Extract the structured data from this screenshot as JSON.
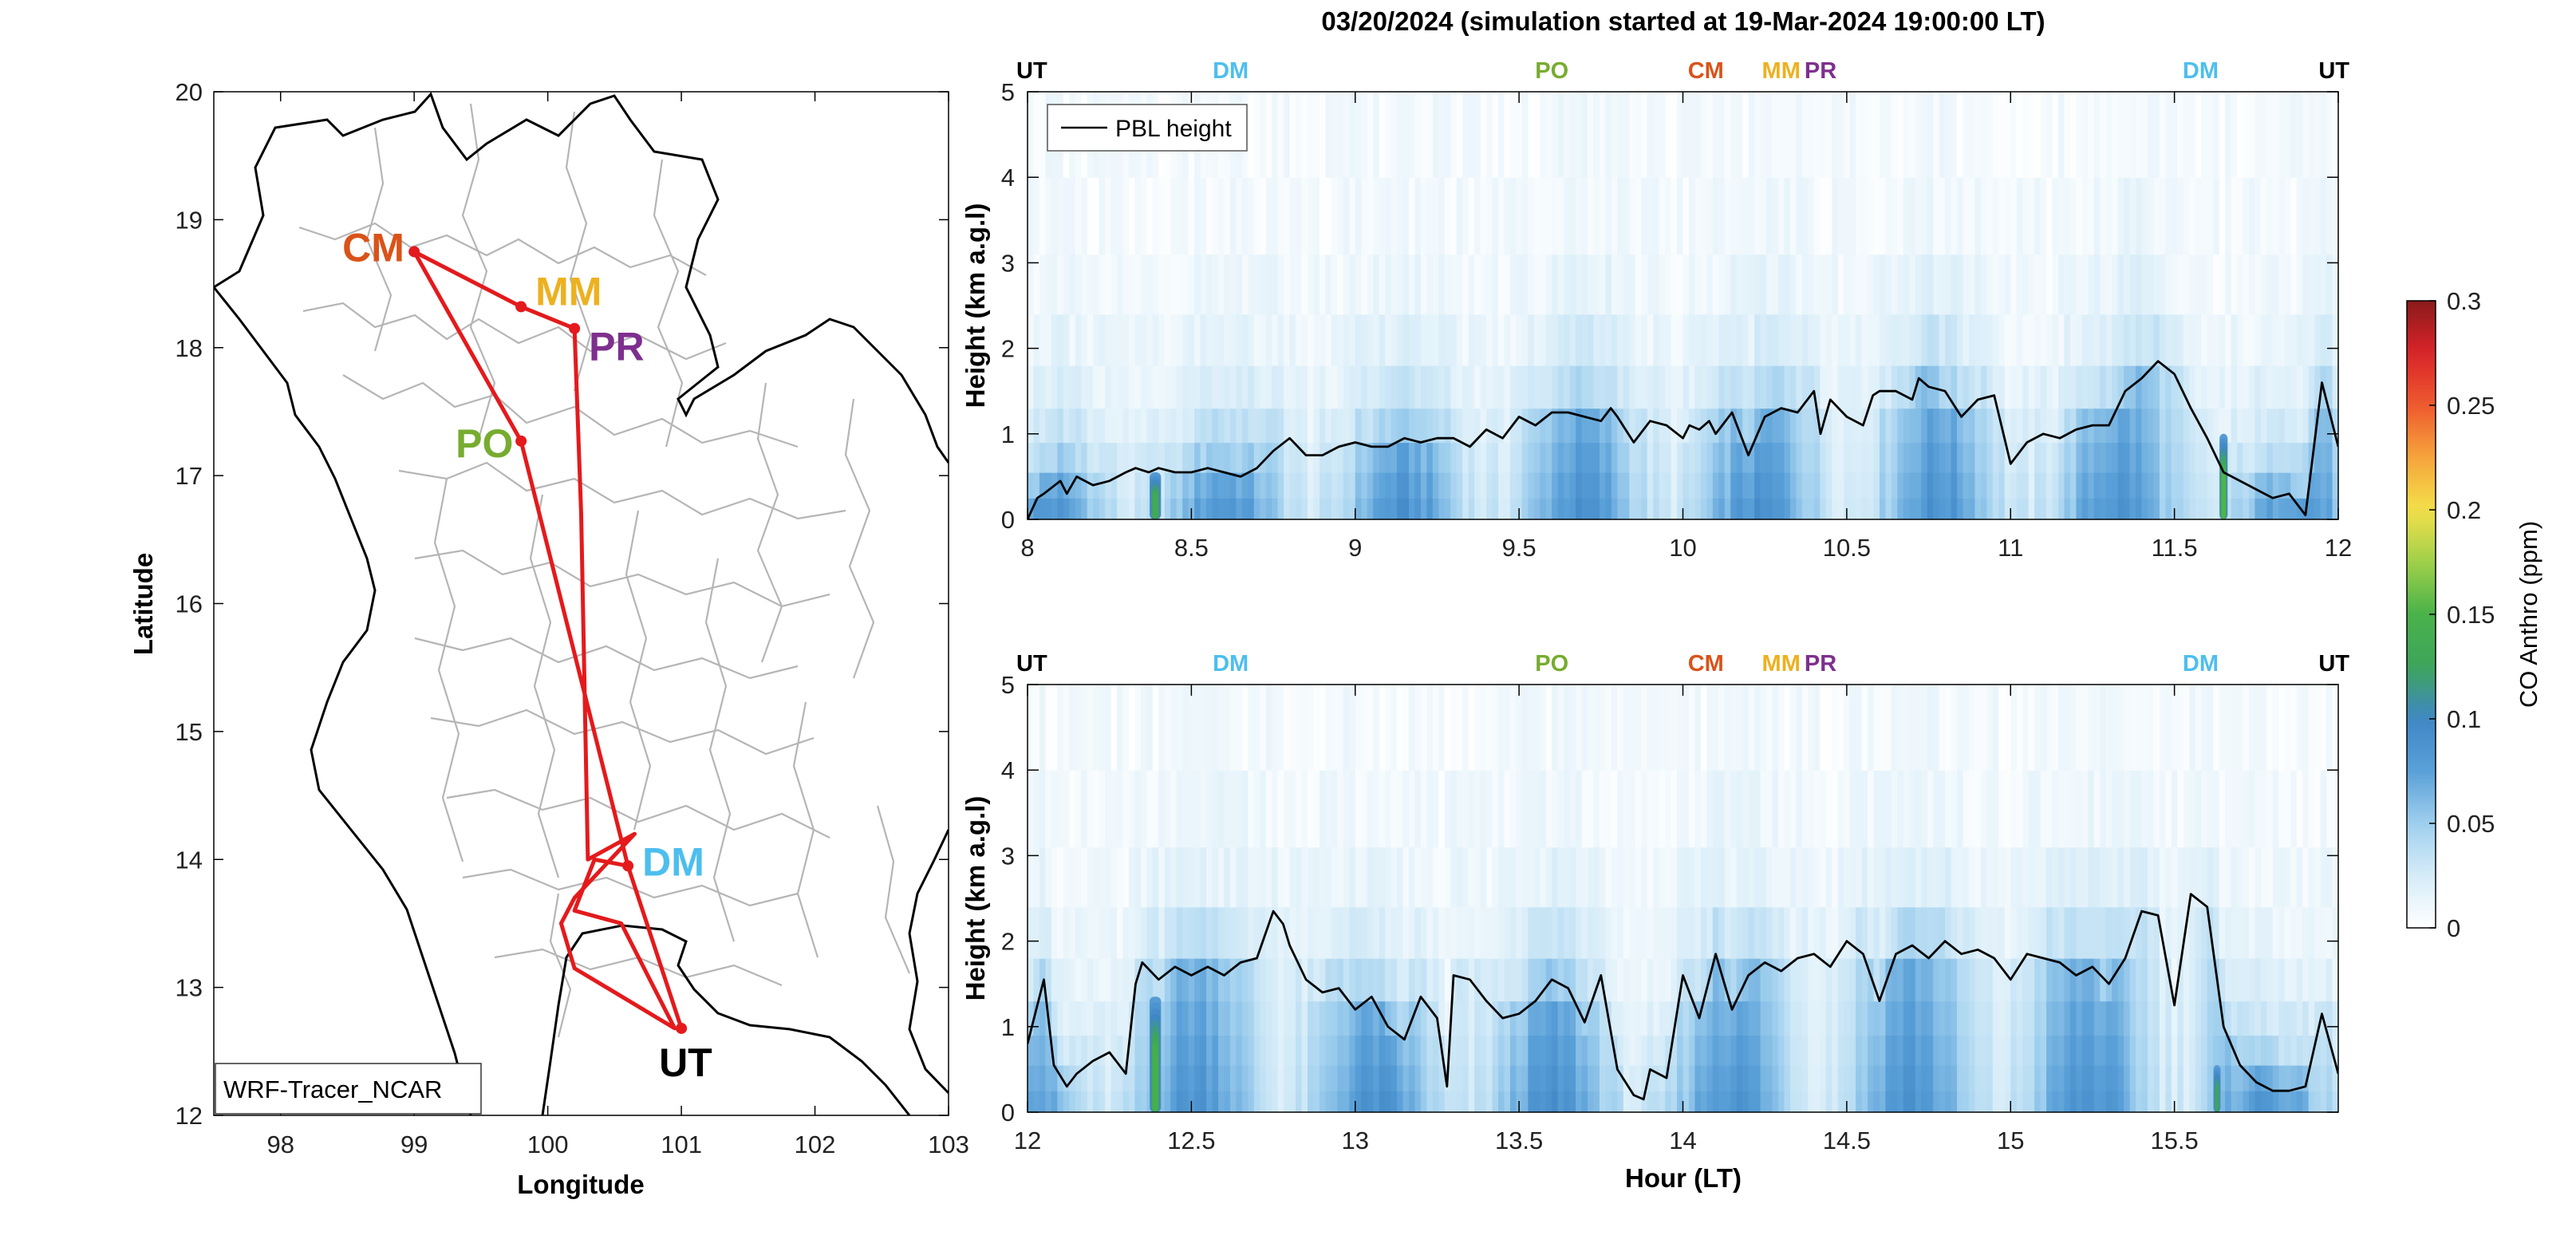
{
  "title": "03/20/2024 (simulation started at 19-Mar-2024 19:00:00 LT)",
  "colors": {
    "route": "#e41a1c",
    "pbl_line": "#000000",
    "border": "#000000",
    "province": "#b3b3b3",
    "CM": "#d95319",
    "MM": "#edb120",
    "PR": "#7e2f8e",
    "PO": "#77ac30",
    "DM": "#4dbeee",
    "UT": "#000000"
  },
  "colormap": {
    "name": "CO Anthro (ppm)",
    "range": [
      0,
      0.3
    ],
    "ticks": [
      "0",
      "0.05",
      "0.1",
      "0.15",
      "0.2",
      "0.25",
      "0.3"
    ],
    "stops": [
      "#ffffff",
      "#d6ecf8",
      "#9fcfee",
      "#5aa0d8",
      "#3f86c6",
      "#3ea55a",
      "#49b24a",
      "#9fd04a",
      "#f4e04a",
      "#f6a43c",
      "#ee5a2f",
      "#d9242a",
      "#8b1a1a"
    ]
  },
  "chart_data": [
    {
      "type": "map",
      "legend": "WRF-Tracer_NCAR",
      "xlabel": "Longitude",
      "ylabel": "Latitude",
      "xlim": [
        97.5,
        103
      ],
      "ylim": [
        12,
        20
      ],
      "xticks": [
        98,
        99,
        100,
        101,
        102,
        103
      ],
      "yticks": [
        12,
        13,
        14,
        15,
        16,
        17,
        18,
        19,
        20
      ],
      "stations": [
        {
          "code": "CM",
          "lon": 99.0,
          "lat": 18.75
        },
        {
          "code": "MM",
          "lon": 99.8,
          "lat": 18.32
        },
        {
          "code": "PR",
          "lon": 100.2,
          "lat": 18.15
        },
        {
          "code": "PO",
          "lon": 99.8,
          "lat": 17.27
        },
        {
          "code": "DM",
          "lon": 100.6,
          "lat": 13.95
        },
        {
          "code": "UT",
          "lon": 101.0,
          "lat": 12.68
        }
      ],
      "route": [
        [
          101.0,
          12.68
        ],
        [
          100.6,
          13.95
        ],
        [
          99.8,
          17.27
        ],
        [
          99.0,
          18.75
        ],
        [
          99.8,
          18.32
        ],
        [
          100.2,
          18.15
        ],
        [
          100.25,
          16.7
        ],
        [
          100.3,
          14.0
        ],
        [
          100.65,
          14.2
        ],
        [
          100.2,
          13.7
        ],
        [
          100.1,
          13.5
        ],
        [
          100.2,
          13.15
        ],
        [
          100.95,
          12.68
        ],
        [
          100.55,
          13.5
        ],
        [
          100.2,
          13.6
        ],
        [
          100.35,
          14.0
        ],
        [
          100.6,
          13.95
        ]
      ]
    },
    {
      "type": "heatmap",
      "xlim": [
        8,
        12
      ],
      "ylim": [
        0,
        5
      ],
      "xticks": [
        "8",
        "8.5",
        "9",
        "9.5",
        "10",
        "10.5",
        "11",
        "11.5",
        "12"
      ],
      "yticks": [
        "0",
        "1",
        "2",
        "3",
        "4",
        "5"
      ],
      "ylabel": "Height (km a.g.l)",
      "legend": [
        "PBL height"
      ],
      "station_markers": [
        {
          "code": "UT",
          "x": 8.0
        },
        {
          "code": "DM",
          "x": 8.62
        },
        {
          "code": "PO",
          "x": 9.6
        },
        {
          "code": "CM",
          "x": 10.07
        },
        {
          "code": "MM",
          "x": 10.3
        },
        {
          "code": "PR",
          "x": 10.42
        },
        {
          "code": "DM",
          "x": 11.58
        },
        {
          "code": "UT",
          "x": 12.0
        }
      ],
      "plumes": [
        {
          "x": 8.39,
          "width": 0.035,
          "height": 0.55,
          "peak": 0.13
        },
        {
          "x": 11.65,
          "width": 0.025,
          "height": 1.0,
          "peak": 0.15
        }
      ],
      "pbl_height": {
        "x": [
          8.0,
          8.03,
          8.05,
          8.1,
          8.12,
          8.15,
          8.2,
          8.25,
          8.3,
          8.33,
          8.37,
          8.4,
          8.45,
          8.5,
          8.55,
          8.6,
          8.65,
          8.7,
          8.75,
          8.8,
          8.85,
          8.9,
          8.95,
          9.0,
          9.05,
          9.1,
          9.15,
          9.2,
          9.25,
          9.3,
          9.35,
          9.4,
          9.45,
          9.5,
          9.55,
          9.6,
          9.65,
          9.7,
          9.75,
          9.78,
          9.8,
          9.85,
          9.9,
          9.95,
          10.0,
          10.02,
          10.05,
          10.08,
          10.1,
          10.12,
          10.15,
          10.2,
          10.25,
          10.3,
          10.35,
          10.4,
          10.42,
          10.45,
          10.5,
          10.55,
          10.58,
          10.6,
          10.65,
          10.7,
          10.72,
          10.75,
          10.8,
          10.85,
          10.9,
          10.95,
          11.0,
          11.05,
          11.1,
          11.15,
          11.2,
          11.25,
          11.3,
          11.35,
          11.4,
          11.45,
          11.5,
          11.55,
          11.6,
          11.65,
          11.7,
          11.75,
          11.8,
          11.85,
          11.9,
          11.95,
          12.0
        ],
        "y": [
          0.0,
          0.25,
          0.3,
          0.45,
          0.3,
          0.5,
          0.4,
          0.45,
          0.55,
          0.6,
          0.55,
          0.6,
          0.55,
          0.55,
          0.6,
          0.55,
          0.5,
          0.6,
          0.8,
          0.95,
          0.75,
          0.75,
          0.85,
          0.9,
          0.85,
          0.85,
          0.95,
          0.9,
          0.95,
          0.95,
          0.85,
          1.05,
          0.95,
          1.2,
          1.1,
          1.25,
          1.25,
          1.2,
          1.15,
          1.3,
          1.2,
          0.9,
          1.15,
          1.1,
          0.95,
          1.1,
          1.05,
          1.15,
          1.0,
          1.1,
          1.25,
          0.75,
          1.2,
          1.3,
          1.25,
          1.5,
          1.0,
          1.4,
          1.2,
          1.1,
          1.45,
          1.5,
          1.5,
          1.4,
          1.65,
          1.55,
          1.5,
          1.2,
          1.4,
          1.45,
          0.65,
          0.9,
          1.0,
          0.95,
          1.05,
          1.1,
          1.1,
          1.5,
          1.65,
          1.85,
          1.7,
          1.3,
          0.95,
          0.55,
          0.45,
          0.35,
          0.25,
          0.3,
          0.05,
          1.6,
          0.85
        ]
      }
    },
    {
      "type": "heatmap",
      "xlim": [
        12,
        16
      ],
      "ylim": [
        0,
        5
      ],
      "xticks": [
        "12",
        "12.5",
        "13",
        "13.5",
        "14",
        "14.5",
        "15",
        "15.5"
      ],
      "yticks": [
        "0",
        "1",
        "2",
        "3",
        "4",
        "5"
      ],
      "xlabel": "Hour (LT)",
      "ylabel": "Height (km a.g.l)",
      "station_markers": [
        {
          "code": "UT",
          "x": 12.0
        },
        {
          "code": "DM",
          "x": 12.62
        },
        {
          "code": "PO",
          "x": 13.6
        },
        {
          "code": "CM",
          "x": 14.07
        },
        {
          "code": "MM",
          "x": 14.3
        },
        {
          "code": "PR",
          "x": 14.42
        },
        {
          "code": "DM",
          "x": 15.58
        },
        {
          "code": "UT",
          "x": 16.0
        }
      ],
      "plumes": [
        {
          "x": 12.39,
          "width": 0.035,
          "height": 1.35,
          "peak": 0.14
        },
        {
          "x": 15.63,
          "width": 0.022,
          "height": 0.55,
          "peak": 0.12
        }
      ],
      "pbl_height": {
        "x": [
          12.0,
          12.05,
          12.08,
          12.12,
          12.15,
          12.2,
          12.25,
          12.3,
          12.33,
          12.35,
          12.4,
          12.45,
          12.5,
          12.55,
          12.6,
          12.65,
          12.7,
          12.75,
          12.78,
          12.8,
          12.85,
          12.9,
          12.95,
          13.0,
          13.05,
          13.1,
          13.15,
          13.2,
          13.25,
          13.28,
          13.3,
          13.35,
          13.4,
          13.45,
          13.5,
          13.55,
          13.6,
          13.65,
          13.7,
          13.75,
          13.8,
          13.85,
          13.88,
          13.9,
          13.95,
          14.0,
          14.05,
          14.1,
          14.15,
          14.2,
          14.25,
          14.3,
          14.35,
          14.4,
          14.45,
          14.5,
          14.55,
          14.6,
          14.65,
          14.7,
          14.75,
          14.8,
          14.85,
          14.9,
          14.95,
          15.0,
          15.05,
          15.1,
          15.15,
          15.2,
          15.25,
          15.3,
          15.35,
          15.4,
          15.45,
          15.5,
          15.55,
          15.6,
          15.65,
          15.7,
          15.75,
          15.8,
          15.85,
          15.9,
          15.95,
          16.0
        ],
        "y": [
          0.8,
          1.55,
          0.55,
          0.3,
          0.45,
          0.6,
          0.7,
          0.45,
          1.5,
          1.75,
          1.55,
          1.7,
          1.6,
          1.7,
          1.6,
          1.75,
          1.8,
          2.35,
          2.2,
          1.95,
          1.55,
          1.4,
          1.45,
          1.2,
          1.35,
          1.0,
          0.85,
          1.35,
          1.1,
          0.3,
          1.6,
          1.55,
          1.3,
          1.1,
          1.15,
          1.3,
          1.55,
          1.45,
          1.05,
          1.6,
          0.5,
          0.2,
          0.15,
          0.5,
          0.4,
          1.6,
          1.1,
          1.85,
          1.2,
          1.6,
          1.75,
          1.65,
          1.8,
          1.85,
          1.7,
          2.0,
          1.85,
          1.3,
          1.85,
          1.95,
          1.8,
          2.0,
          1.85,
          1.9,
          1.8,
          1.55,
          1.85,
          1.8,
          1.75,
          1.6,
          1.7,
          1.5,
          1.8,
          2.35,
          2.3,
          1.25,
          2.55,
          2.4,
          1.0,
          0.55,
          0.35,
          0.25,
          0.25,
          0.3,
          1.15,
          0.45
        ]
      }
    }
  ]
}
